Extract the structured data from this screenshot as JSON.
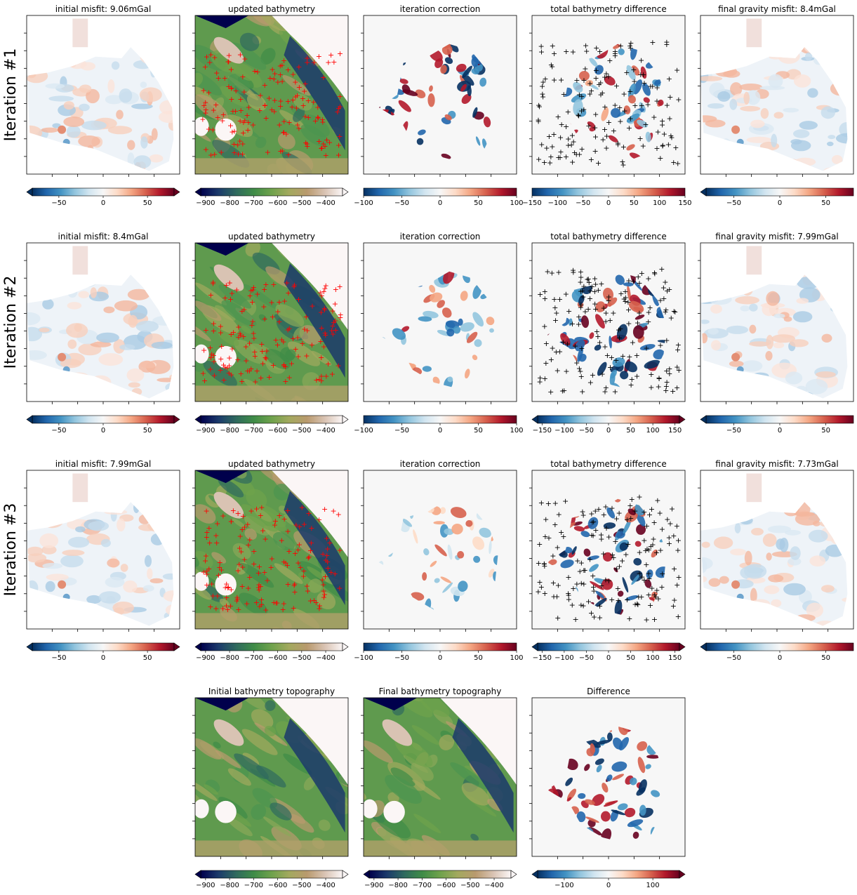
{
  "figure": {
    "row_labels": [
      "Iteration #1",
      "Iteration #2",
      "Iteration #3"
    ],
    "colors": {
      "diverging": [
        "#053061",
        "#2166ac",
        "#4393c3",
        "#92c5de",
        "#d1e5f0",
        "#f7f7f7",
        "#fddbc7",
        "#f4a582",
        "#d6604d",
        "#b2182b",
        "#67001f"
      ],
      "topography": [
        "#00004c",
        "#1b3a6b",
        "#2f6a5e",
        "#3f8c47",
        "#6fa24c",
        "#a3a95e",
        "#b99a6e",
        "#d9c3b3",
        "#fbf6f6"
      ],
      "panel_background": "#f7f7f7",
      "bathy_points": "#ff0000",
      "difference_points": "#000000"
    },
    "panels": [
      {
        "id": "r1c1",
        "title": "initial misfit: 9.06mGal",
        "kind": "misfit",
        "colorbar_ticks": [
          "−50",
          "0",
          "50"
        ],
        "colorbar_extend": "both"
      },
      {
        "id": "r1c2",
        "title": "updated bathymetry",
        "kind": "bathymetry",
        "points": "red-plus",
        "colorbar_ticks": [
          "−900",
          "−800",
          "−700",
          "−600",
          "−500",
          "−400"
        ],
        "colorbar_extend": "both"
      },
      {
        "id": "r1c3",
        "title": "iteration correction",
        "kind": "correction",
        "intensity": "strong",
        "colorbar_ticks": [
          "−100",
          "−50",
          "0",
          "50",
          "100"
        ],
        "colorbar_extend": "neither"
      },
      {
        "id": "r1c4",
        "title": "total bathymetry difference",
        "kind": "difference",
        "points": "black-plus",
        "intensity": "medium",
        "colorbar_ticks": [
          "−150",
          "−100",
          "−50",
          "0",
          "50",
          "100",
          "150"
        ],
        "colorbar_extend": "neither"
      },
      {
        "id": "r1c5",
        "title": "final gravity misfit: 8.4mGal",
        "kind": "misfit",
        "colorbar_ticks": [
          "−50",
          "0",
          "50"
        ],
        "colorbar_extend": "min"
      },
      {
        "id": "r2c1",
        "title": "initial misfit: 8.4mGal",
        "kind": "misfit",
        "colorbar_ticks": [
          "−50",
          "0",
          "50"
        ],
        "colorbar_extend": "both"
      },
      {
        "id": "r2c2",
        "title": "updated bathymetry",
        "kind": "bathymetry",
        "points": "red-plus",
        "colorbar_ticks": [
          "−900",
          "−800",
          "−700",
          "−600",
          "−500",
          "−400"
        ],
        "colorbar_extend": "both"
      },
      {
        "id": "r2c3",
        "title": "iteration correction",
        "kind": "correction",
        "intensity": "medium",
        "colorbar_ticks": [
          "−100",
          "−50",
          "0",
          "50",
          "100"
        ],
        "colorbar_extend": "neither"
      },
      {
        "id": "r2c4",
        "title": "total bathymetry difference",
        "kind": "difference",
        "points": "black-plus",
        "intensity": "strong",
        "colorbar_ticks": [
          "−150",
          "−100",
          "−50",
          "0",
          "50",
          "100",
          "150"
        ],
        "colorbar_extend": "both"
      },
      {
        "id": "r2c5",
        "title": "final gravity misfit: 7.99mGal",
        "kind": "misfit",
        "colorbar_ticks": [
          "−50",
          "0",
          "50"
        ],
        "colorbar_extend": "min"
      },
      {
        "id": "r3c1",
        "title": "initial misfit: 7.99mGal",
        "kind": "misfit",
        "colorbar_ticks": [
          "−50",
          "0",
          "50"
        ],
        "colorbar_extend": "both"
      },
      {
        "id": "r3c2",
        "title": "updated bathymetry",
        "kind": "bathymetry",
        "points": "red-plus",
        "colorbar_ticks": [
          "−900",
          "−800",
          "−700",
          "−600",
          "−500",
          "−400"
        ],
        "colorbar_extend": "both"
      },
      {
        "id": "r3c3",
        "title": "iteration correction",
        "kind": "correction",
        "intensity": "weak",
        "colorbar_ticks": [
          "−100",
          "−50",
          "0",
          "50",
          "100"
        ],
        "colorbar_extend": "neither"
      },
      {
        "id": "r3c4",
        "title": "total bathymetry difference",
        "kind": "difference",
        "points": "black-plus",
        "intensity": "strong",
        "colorbar_ticks": [
          "−150",
          "−100",
          "−50",
          "0",
          "50",
          "100",
          "150"
        ],
        "colorbar_extend": "both"
      },
      {
        "id": "r3c5",
        "title": "final gravity misfit: 7.73mGal",
        "kind": "misfit",
        "colorbar_ticks": [
          "−50",
          "0",
          "50"
        ],
        "colorbar_extend": "min"
      },
      {
        "id": "r4c2",
        "title": "Initial bathymetry topography",
        "kind": "bathymetry",
        "points": "none",
        "colorbar_ticks": [
          "−900",
          "−800",
          "−700",
          "−600",
          "−500",
          "−400"
        ],
        "colorbar_extend": "both"
      },
      {
        "id": "r4c3",
        "title": "Final bathymetry topography",
        "kind": "bathymetry",
        "points": "none",
        "colorbar_ticks": [
          "−900",
          "−800",
          "−700",
          "−600",
          "−500",
          "−400"
        ],
        "colorbar_extend": "both"
      },
      {
        "id": "r4c4",
        "title": "Difference",
        "kind": "difference",
        "points": "none",
        "intensity": "strong",
        "colorbar_ticks": [
          "−100",
          "0",
          "100"
        ],
        "colorbar_extend": "both"
      }
    ]
  },
  "chart_data": [
    {
      "type": "heatmap",
      "title": "initial misfit: 9.06mGal",
      "colormap": "RdBu_r",
      "colorbar_range": [
        -80,
        80
      ],
      "colorbar_ticks": [
        -50,
        0,
        50
      ],
      "units": "mGal",
      "misfit_value": 9.06
    },
    {
      "type": "heatmap",
      "title": "updated bathymetry",
      "colormap": "gist_earth",
      "colorbar_range": [
        -920,
        -330
      ],
      "colorbar_ticks": [
        -900,
        -800,
        -700,
        -600,
        -500,
        -400
      ],
      "overlay": "constraint points (red +)"
    },
    {
      "type": "heatmap",
      "title": "iteration correction",
      "colormap": "RdBu_r",
      "colorbar_range": [
        -100,
        100
      ],
      "colorbar_ticks": [
        -100,
        -50,
        0,
        50,
        100
      ]
    },
    {
      "type": "heatmap",
      "title": "total bathymetry difference",
      "colormap": "RdBu_r",
      "colorbar_range": [
        -150,
        150
      ],
      "colorbar_ticks": [
        -150,
        -100,
        -50,
        0,
        50,
        100,
        150
      ],
      "overlay": "constraint points (black +)"
    },
    {
      "type": "heatmap",
      "title": "final gravity misfit: 8.4mGal",
      "colormap": "RdBu_r",
      "colorbar_range": [
        -80,
        80
      ],
      "colorbar_ticks": [
        -50,
        0,
        50
      ],
      "units": "mGal",
      "misfit_value": 8.4
    },
    {
      "type": "heatmap",
      "title": "initial misfit: 8.4mGal",
      "colormap": "RdBu_r",
      "colorbar_range": [
        -80,
        80
      ],
      "colorbar_ticks": [
        -50,
        0,
        50
      ],
      "units": "mGal",
      "misfit_value": 8.4
    },
    {
      "type": "heatmap",
      "title": "updated bathymetry",
      "colormap": "gist_earth",
      "colorbar_range": [
        -920,
        -330
      ],
      "colorbar_ticks": [
        -900,
        -800,
        -700,
        -600,
        -500,
        -400
      ]
    },
    {
      "type": "heatmap",
      "title": "iteration correction",
      "colormap": "RdBu_r",
      "colorbar_range": [
        -100,
        100
      ],
      "colorbar_ticks": [
        -100,
        -50,
        0,
        50,
        100
      ]
    },
    {
      "type": "heatmap",
      "title": "total bathymetry difference",
      "colormap": "RdBu_r",
      "colorbar_range": [
        -160,
        160
      ],
      "colorbar_ticks": [
        -150,
        -100,
        -50,
        0,
        50,
        100,
        150
      ]
    },
    {
      "type": "heatmap",
      "title": "final gravity misfit: 7.99mGal",
      "colormap": "RdBu_r",
      "colorbar_range": [
        -80,
        80
      ],
      "colorbar_ticks": [
        -50,
        0,
        50
      ],
      "units": "mGal",
      "misfit_value": 7.99
    },
    {
      "type": "heatmap",
      "title": "initial misfit: 7.99mGal",
      "colormap": "RdBu_r",
      "colorbar_range": [
        -80,
        80
      ],
      "colorbar_ticks": [
        -50,
        0,
        50
      ],
      "units": "mGal",
      "misfit_value": 7.99
    },
    {
      "type": "heatmap",
      "title": "updated bathymetry",
      "colormap": "gist_earth",
      "colorbar_range": [
        -920,
        -330
      ],
      "colorbar_ticks": [
        -900,
        -800,
        -700,
        -600,
        -500,
        -400
      ]
    },
    {
      "type": "heatmap",
      "title": "iteration correction",
      "colormap": "RdBu_r",
      "colorbar_range": [
        -100,
        100
      ],
      "colorbar_ticks": [
        -100,
        -50,
        0,
        50,
        100
      ]
    },
    {
      "type": "heatmap",
      "title": "total bathymetry difference",
      "colormap": "RdBu_r",
      "colorbar_range": [
        -160,
        160
      ],
      "colorbar_ticks": [
        -150,
        -100,
        -50,
        0,
        50,
        100,
        150
      ]
    },
    {
      "type": "heatmap",
      "title": "final gravity misfit: 7.73mGal",
      "colormap": "RdBu_r",
      "colorbar_range": [
        -80,
        80
      ],
      "colorbar_ticks": [
        -50,
        0,
        50
      ],
      "units": "mGal",
      "misfit_value": 7.73
    },
    {
      "type": "heatmap",
      "title": "Initial bathymetry topography",
      "colormap": "gist_earth",
      "colorbar_range": [
        -920,
        -330
      ],
      "colorbar_ticks": [
        -900,
        -800,
        -700,
        -600,
        -500,
        -400
      ]
    },
    {
      "type": "heatmap",
      "title": "Final bathymetry topography",
      "colormap": "gist_earth",
      "colorbar_range": [
        -920,
        -330
      ],
      "colorbar_ticks": [
        -900,
        -800,
        -700,
        -600,
        -500,
        -400
      ]
    },
    {
      "type": "heatmap",
      "title": "Difference",
      "colormap": "RdBu_r",
      "colorbar_range": [
        -160,
        160
      ],
      "colorbar_ticks": [
        -100,
        0,
        100
      ]
    }
  ]
}
